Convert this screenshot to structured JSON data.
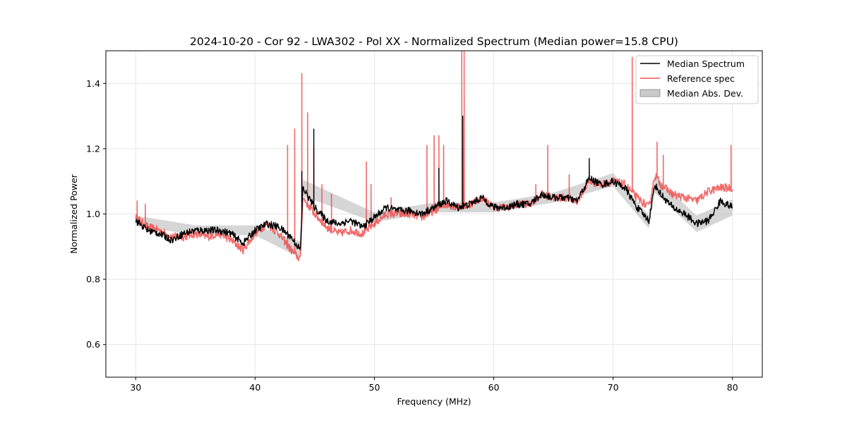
{
  "chart_data": {
    "type": "line",
    "title": "2024-10-20 - Cor 92 - LWA302 - Pol XX - Normalized Spectrum (Median power=15.8 CPU)",
    "xlabel": "Frequency (MHz)",
    "ylabel": "Normalized Power",
    "xlim": [
      27.5,
      82.5
    ],
    "ylim": [
      0.5,
      1.5
    ],
    "x_ticks": [
      30,
      40,
      50,
      60,
      70,
      80
    ],
    "y_ticks": [
      0.6,
      0.8,
      1.0,
      1.2,
      1.4
    ],
    "x_tick_labels": [
      "30",
      "40",
      "50",
      "60",
      "70",
      "80"
    ],
    "y_tick_labels": [
      "0.6",
      "0.8",
      "1.0",
      "1.2",
      "1.4"
    ],
    "grid": true,
    "legend_position": "upper right",
    "colors": {
      "median": "#000000",
      "reference": "#f05050",
      "mad": "#b4b4b4"
    },
    "series": [
      {
        "name": "Median Spectrum",
        "x": [
          30,
          31,
          32,
          33,
          34,
          35,
          36,
          37,
          38,
          39,
          40,
          41,
          42,
          43,
          43.8,
          44,
          45,
          46,
          47,
          48,
          49,
          50,
          51,
          52,
          53,
          54,
          55,
          56,
          57,
          58,
          59,
          60,
          61,
          62,
          63,
          64,
          65,
          66,
          67,
          68,
          69,
          70,
          71,
          72,
          73,
          73.5,
          74,
          75,
          76,
          77,
          78,
          79,
          80
        ],
        "values": [
          0.98,
          0.95,
          0.94,
          0.92,
          0.94,
          0.95,
          0.95,
          0.95,
          0.94,
          0.91,
          0.95,
          0.97,
          0.96,
          0.93,
          0.89,
          1.08,
          1.02,
          0.98,
          0.97,
          0.98,
          0.96,
          0.99,
          1.02,
          1.01,
          1.01,
          1.0,
          1.02,
          1.04,
          1.02,
          1.03,
          1.05,
          1.02,
          1.02,
          1.03,
          1.03,
          1.06,
          1.05,
          1.05,
          1.04,
          1.11,
          1.09,
          1.1,
          1.08,
          1.02,
          0.98,
          1.09,
          1.06,
          1.02,
          1.0,
          0.97,
          0.98,
          1.04,
          1.02
        ]
      },
      {
        "name": "Reference spec",
        "x": [
          30,
          31,
          32,
          33,
          34,
          35,
          36,
          37,
          38,
          39,
          40,
          41,
          42,
          43,
          43.8,
          44,
          45,
          46,
          47,
          48,
          49,
          50,
          51,
          52,
          53,
          54,
          55,
          56,
          57,
          58,
          59,
          60,
          61,
          62,
          63,
          64,
          65,
          66,
          67,
          68,
          69,
          70,
          71,
          72,
          73,
          73.5,
          74,
          75,
          76,
          77,
          78,
          79,
          80
        ],
        "values": [
          0.99,
          0.96,
          0.95,
          0.93,
          0.93,
          0.94,
          0.93,
          0.94,
          0.92,
          0.89,
          0.94,
          0.97,
          0.94,
          0.89,
          0.86,
          1.05,
          1.0,
          0.96,
          0.94,
          0.95,
          0.94,
          0.97,
          1.0,
          1.0,
          1.0,
          0.99,
          1.01,
          1.03,
          1.02,
          1.03,
          1.05,
          1.02,
          1.02,
          1.03,
          1.03,
          1.06,
          1.05,
          1.05,
          1.04,
          1.1,
          1.09,
          1.1,
          1.09,
          1.05,
          1.02,
          1.12,
          1.09,
          1.06,
          1.05,
          1.04,
          1.07,
          1.08,
          1.08
        ]
      },
      {
        "name": "Median Abs. Dev.",
        "x": [
          30,
          35,
          40,
          43.8,
          44,
          50,
          55,
          60,
          65,
          70,
          73,
          73.5,
          77,
          80
        ],
        "low": [
          0.97,
          0.94,
          0.94,
          0.87,
          1.06,
          0.98,
          1.01,
          1.01,
          1.04,
          1.09,
          0.96,
          1.07,
          0.95,
          1.0
        ],
        "high": [
          0.99,
          0.96,
          0.96,
          0.91,
          1.1,
          1.0,
          1.03,
          1.03,
          1.06,
          1.12,
          0.99,
          1.11,
          0.99,
          1.04
        ]
      }
    ],
    "spikes": {
      "reference": [
        {
          "x": 30.1,
          "y": 1.04
        },
        {
          "x": 30.8,
          "y": 1.03
        },
        {
          "x": 42.7,
          "y": 1.21
        },
        {
          "x": 43.3,
          "y": 1.26
        },
        {
          "x": 43.9,
          "y": 1.43
        },
        {
          "x": 44.4,
          "y": 1.31
        },
        {
          "x": 44.9,
          "y": 1.2
        },
        {
          "x": 45.6,
          "y": 1.09
        },
        {
          "x": 46.4,
          "y": 1.06
        },
        {
          "x": 49.3,
          "y": 1.16
        },
        {
          "x": 49.7,
          "y": 1.09
        },
        {
          "x": 51.4,
          "y": 1.05
        },
        {
          "x": 54.4,
          "y": 1.21
        },
        {
          "x": 55.0,
          "y": 1.24
        },
        {
          "x": 55.4,
          "y": 1.24
        },
        {
          "x": 55.8,
          "y": 1.21
        },
        {
          "x": 57.3,
          "y": 1.5
        },
        {
          "x": 57.5,
          "y": 1.5
        },
        {
          "x": 63.5,
          "y": 1.09
        },
        {
          "x": 64.5,
          "y": 1.21
        },
        {
          "x": 66.3,
          "y": 1.12
        },
        {
          "x": 71.6,
          "y": 1.48
        },
        {
          "x": 73.7,
          "y": 1.22
        },
        {
          "x": 74.2,
          "y": 1.18
        },
        {
          "x": 79.9,
          "y": 1.21
        }
      ],
      "median": [
        {
          "x": 43.9,
          "y": 1.13
        },
        {
          "x": 44.9,
          "y": 1.26
        },
        {
          "x": 55.4,
          "y": 1.14
        },
        {
          "x": 57.4,
          "y": 1.3
        },
        {
          "x": 68.0,
          "y": 1.17
        }
      ]
    }
  }
}
